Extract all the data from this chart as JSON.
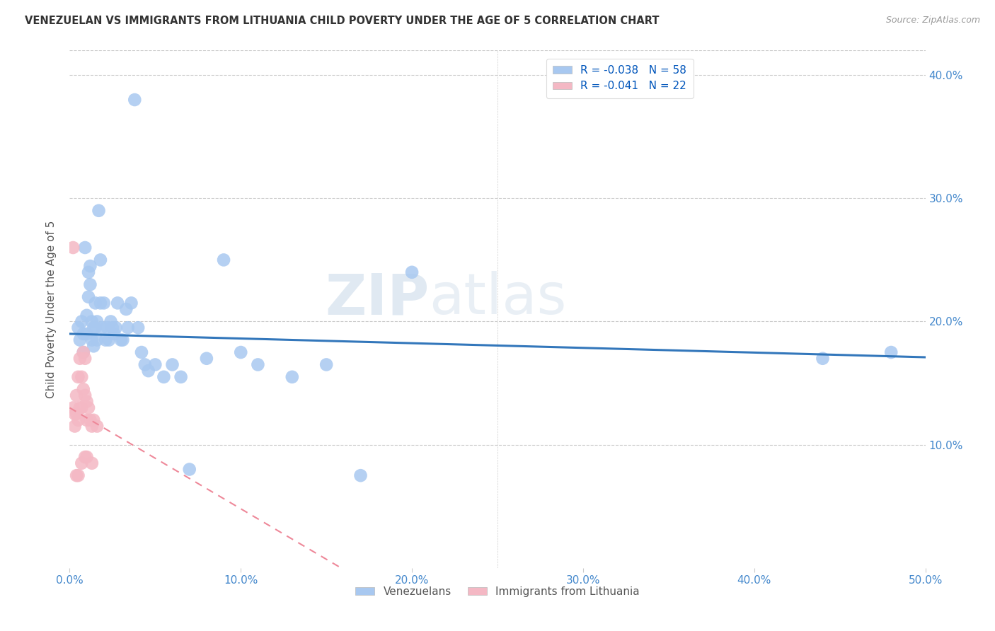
{
  "title": "VENEZUELAN VS IMMIGRANTS FROM LITHUANIA CHILD POVERTY UNDER THE AGE OF 5 CORRELATION CHART",
  "source": "Source: ZipAtlas.com",
  "ylabel": "Child Poverty Under the Age of 5",
  "xlim": [
    0,
    0.5
  ],
  "ylim": [
    0,
    0.42
  ],
  "legend1_label": "R = -0.038   N = 58",
  "legend2_label": "R = -0.041   N = 22",
  "blue_color": "#a8c8f0",
  "pink_color": "#f4b8c4",
  "line_blue": "#3377bb",
  "line_pink": "#ee8899",
  "venezuelan_x": [
    0.005,
    0.006,
    0.007,
    0.008,
    0.008,
    0.009,
    0.01,
    0.01,
    0.011,
    0.011,
    0.012,
    0.012,
    0.013,
    0.013,
    0.014,
    0.014,
    0.015,
    0.015,
    0.016,
    0.016,
    0.017,
    0.018,
    0.018,
    0.019,
    0.02,
    0.021,
    0.022,
    0.023,
    0.024,
    0.025,
    0.026,
    0.027,
    0.028,
    0.03,
    0.031,
    0.033,
    0.034,
    0.036,
    0.038,
    0.04,
    0.042,
    0.044,
    0.046,
    0.05,
    0.055,
    0.06,
    0.065,
    0.07,
    0.08,
    0.09,
    0.1,
    0.11,
    0.13,
    0.15,
    0.17,
    0.2,
    0.44,
    0.48
  ],
  "venezuelan_y": [
    0.195,
    0.185,
    0.2,
    0.19,
    0.175,
    0.26,
    0.205,
    0.19,
    0.24,
    0.22,
    0.245,
    0.23,
    0.2,
    0.185,
    0.195,
    0.18,
    0.215,
    0.195,
    0.2,
    0.185,
    0.29,
    0.25,
    0.215,
    0.195,
    0.215,
    0.185,
    0.195,
    0.185,
    0.2,
    0.195,
    0.19,
    0.195,
    0.215,
    0.185,
    0.185,
    0.21,
    0.195,
    0.215,
    0.38,
    0.195,
    0.175,
    0.165,
    0.16,
    0.165,
    0.155,
    0.165,
    0.155,
    0.08,
    0.17,
    0.25,
    0.175,
    0.165,
    0.155,
    0.165,
    0.075,
    0.24,
    0.17,
    0.175
  ],
  "lithuania_x": [
    0.002,
    0.003,
    0.003,
    0.004,
    0.004,
    0.005,
    0.005,
    0.006,
    0.006,
    0.007,
    0.007,
    0.008,
    0.008,
    0.009,
    0.009,
    0.01,
    0.01,
    0.011,
    0.012,
    0.013,
    0.014,
    0.016
  ],
  "lithuania_y": [
    0.13,
    0.125,
    0.115,
    0.14,
    0.125,
    0.155,
    0.12,
    0.17,
    0.13,
    0.155,
    0.13,
    0.175,
    0.145,
    0.17,
    0.14,
    0.135,
    0.12,
    0.13,
    0.12,
    0.115,
    0.12,
    0.115
  ],
  "lit_extra_high": [
    0.26
  ],
  "lit_extra_high_x": [
    0.002
  ],
  "lit_low_x": [
    0.004,
    0.005,
    0.007,
    0.009,
    0.01,
    0.013
  ],
  "lit_low_y": [
    0.075,
    0.075,
    0.085,
    0.09,
    0.09,
    0.085
  ],
  "watermark_zip": "ZIP",
  "watermark_atlas": "atlas",
  "background_color": "#ffffff",
  "grid_color": "#cccccc"
}
